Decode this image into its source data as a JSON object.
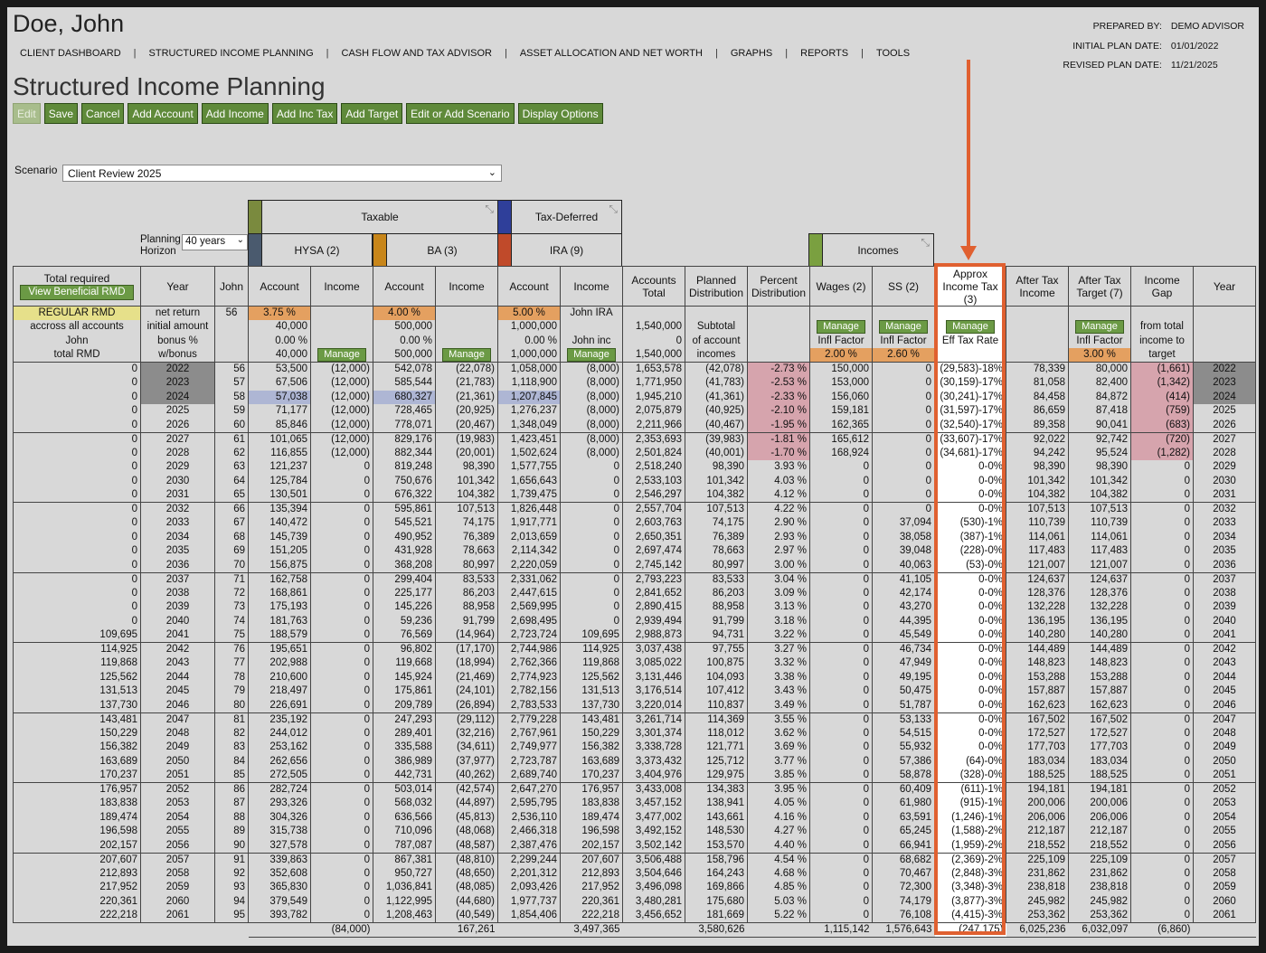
{
  "client": {
    "name": "Doe, John"
  },
  "nav": [
    "CLIENT DASHBOARD",
    "STRUCTURED INCOME PLANNING",
    "CASH FLOW AND TAX ADVISOR",
    "ASSET ALLOCATION AND NET WORTH",
    "GRAPHS",
    "REPORTS",
    "TOOLS"
  ],
  "meta": {
    "prepared_by_label": "PREPARED BY:",
    "prepared_by": "DEMO ADVISOR",
    "initial_label": "INITIAL PLAN DATE:",
    "initial": "01/01/2022",
    "revised_label": "REVISED PLAN DATE:",
    "revised": "11/21/2025"
  },
  "page_title": "Structured Income Planning",
  "toolbar": [
    "Edit",
    "Save",
    "Cancel",
    "Add Account",
    "Add Income",
    "Add Inc Tax",
    "Add Target",
    "Edit or Add Scenario",
    "Display Options"
  ],
  "scenario": {
    "label": "Scenario",
    "value": "Client Review 2025"
  },
  "planning_horizon": {
    "label": "Planning Horizon",
    "value": "40 years"
  },
  "groups": {
    "taxable": "Taxable",
    "taxdef": "Tax-Deferred",
    "incomes": "Incomes"
  },
  "accounts": {
    "hysa": "HYSA (2)",
    "ba": "BA (3)",
    "ira": "IRA (9)"
  },
  "colors": {
    "taxable": "#7a8a3e",
    "hysa": "#4a5a6e",
    "ba": "#c8861a",
    "taxdef": "#2f3f9a",
    "ira": "#c04a2a",
    "incomes": "#7aa040",
    "orange": "#e4a060",
    "highlight": "#e06030"
  },
  "headers": [
    "Total required",
    "Year",
    "John",
    "Account",
    "Income",
    "Account",
    "Income",
    "Account",
    "Income",
    "Accounts Total",
    "Planned Distribution",
    "Percent Distribution",
    "Wages (2)",
    "SS (2)",
    "Approx Income Tax (3)",
    "After Tax Income",
    "After Tax Target (7)",
    "Income Gap",
    "Year"
  ],
  "view_rmd": "View Beneficial RMD",
  "sub": {
    "regular_rmd": "REGULAR RMD",
    "across": "accross all accounts",
    "john": "John",
    "total_rmd": "total RMD",
    "net_return": "net return",
    "initial_amount": "initial amount",
    "bonus": "bonus %",
    "wbonus": "w/bonus",
    "age": "56",
    "hysa_rate": "3.75 %",
    "hysa_init": "40,000",
    "hysa_bonus": "0.00 %",
    "hysa_w": "40,000",
    "ba_rate": "4.00 %",
    "ba_init": "500,000",
    "ba_bonus": "0.00 %",
    "ba_w": "500,000",
    "ira_rate": "5.00 %",
    "ira_init": "1,000,000",
    "ira_bonus": "0.00 %",
    "ira_w": "1,000,000",
    "ira_name": "John IRA",
    "ira_inc": "John inc",
    "acct_total": "1,540,000",
    "acct_zero": "0",
    "acct_w": "1,540,000",
    "subtotal1": "Subtotal",
    "subtotal2": "of account",
    "subtotal3": "incomes",
    "manage": "Manage",
    "infl": "Infl Factor",
    "eff": "Eff Tax Rate",
    "wages_infl": "2.00 %",
    "ss_infl": "2.60 %",
    "target_infl": "3.00 %",
    "gap1": "from total",
    "gap2": "income to",
    "gap3": "target"
  },
  "rows": [
    [
      "0",
      "2022",
      "56",
      "53,500",
      "(12,000)",
      "542,078",
      "(22,078)",
      "1,058,000",
      "(8,000)",
      "1,653,578",
      "(42,078)",
      "-2.73 %",
      "150,000",
      "0",
      "(29,583)-18%",
      "78,339",
      "80,000",
      "(1,661)"
    ],
    [
      "0",
      "2023",
      "57",
      "67,506",
      "(12,000)",
      "585,544",
      "(21,783)",
      "1,118,900",
      "(8,000)",
      "1,771,950",
      "(41,783)",
      "-2.53 %",
      "153,000",
      "0",
      "(30,159)-17%",
      "81,058",
      "82,400",
      "(1,342)"
    ],
    [
      "0",
      "2024",
      "58",
      "57,038",
      "(12,000)",
      "680,327",
      "(21,361)",
      "1,207,845",
      "(8,000)",
      "1,945,210",
      "(41,361)",
      "-2.33 %",
      "156,060",
      "0",
      "(30,241)-17%",
      "84,458",
      "84,872",
      "(414)"
    ],
    [
      "0",
      "2025",
      "59",
      "71,177",
      "(12,000)",
      "728,465",
      "(20,925)",
      "1,276,237",
      "(8,000)",
      "2,075,879",
      "(40,925)",
      "-2.10 %",
      "159,181",
      "0",
      "(31,597)-17%",
      "86,659",
      "87,418",
      "(759)"
    ],
    [
      "0",
      "2026",
      "60",
      "85,846",
      "(12,000)",
      "778,071",
      "(20,467)",
      "1,348,049",
      "(8,000)",
      "2,211,966",
      "(40,467)",
      "-1.95 %",
      "162,365",
      "0",
      "(32,540)-17%",
      "89,358",
      "90,041",
      "(683)"
    ],
    [
      "0",
      "2027",
      "61",
      "101,065",
      "(12,000)",
      "829,176",
      "(19,983)",
      "1,423,451",
      "(8,000)",
      "2,353,693",
      "(39,983)",
      "-1.81 %",
      "165,612",
      "0",
      "(33,607)-17%",
      "92,022",
      "92,742",
      "(720)"
    ],
    [
      "0",
      "2028",
      "62",
      "116,855",
      "(12,000)",
      "882,344",
      "(20,001)",
      "1,502,624",
      "(8,000)",
      "2,501,824",
      "(40,001)",
      "-1.70 %",
      "168,924",
      "0",
      "(34,681)-17%",
      "94,242",
      "95,524",
      "(1,282)"
    ],
    [
      "0",
      "2029",
      "63",
      "121,237",
      "0",
      "819,248",
      "98,390",
      "1,577,755",
      "0",
      "2,518,240",
      "98,390",
      "3.93 %",
      "0",
      "0",
      "0-0%",
      "98,390",
      "98,390",
      "0"
    ],
    [
      "0",
      "2030",
      "64",
      "125,784",
      "0",
      "750,676",
      "101,342",
      "1,656,643",
      "0",
      "2,533,103",
      "101,342",
      "4.03 %",
      "0",
      "0",
      "0-0%",
      "101,342",
      "101,342",
      "0"
    ],
    [
      "0",
      "2031",
      "65",
      "130,501",
      "0",
      "676,322",
      "104,382",
      "1,739,475",
      "0",
      "2,546,297",
      "104,382",
      "4.12 %",
      "0",
      "0",
      "0-0%",
      "104,382",
      "104,382",
      "0"
    ],
    [
      "0",
      "2032",
      "66",
      "135,394",
      "0",
      "595,861",
      "107,513",
      "1,826,448",
      "0",
      "2,557,704",
      "107,513",
      "4.22 %",
      "0",
      "0",
      "0-0%",
      "107,513",
      "107,513",
      "0"
    ],
    [
      "0",
      "2033",
      "67",
      "140,472",
      "0",
      "545,521",
      "74,175",
      "1,917,771",
      "0",
      "2,603,763",
      "74,175",
      "2.90 %",
      "0",
      "37,094",
      "(530)-1%",
      "110,739",
      "110,739",
      "0"
    ],
    [
      "0",
      "2034",
      "68",
      "145,739",
      "0",
      "490,952",
      "76,389",
      "2,013,659",
      "0",
      "2,650,351",
      "76,389",
      "2.93 %",
      "0",
      "38,058",
      "(387)-1%",
      "114,061",
      "114,061",
      "0"
    ],
    [
      "0",
      "2035",
      "69",
      "151,205",
      "0",
      "431,928",
      "78,663",
      "2,114,342",
      "0",
      "2,697,474",
      "78,663",
      "2.97 %",
      "0",
      "39,048",
      "(228)-0%",
      "117,483",
      "117,483",
      "0"
    ],
    [
      "0",
      "2036",
      "70",
      "156,875",
      "0",
      "368,208",
      "80,997",
      "2,220,059",
      "0",
      "2,745,142",
      "80,997",
      "3.00 %",
      "0",
      "40,063",
      "(53)-0%",
      "121,007",
      "121,007",
      "0"
    ],
    [
      "0",
      "2037",
      "71",
      "162,758",
      "0",
      "299,404",
      "83,533",
      "2,331,062",
      "0",
      "2,793,223",
      "83,533",
      "3.04 %",
      "0",
      "41,105",
      "0-0%",
      "124,637",
      "124,637",
      "0"
    ],
    [
      "0",
      "2038",
      "72",
      "168,861",
      "0",
      "225,177",
      "86,203",
      "2,447,615",
      "0",
      "2,841,652",
      "86,203",
      "3.09 %",
      "0",
      "42,174",
      "0-0%",
      "128,376",
      "128,376",
      "0"
    ],
    [
      "0",
      "2039",
      "73",
      "175,193",
      "0",
      "145,226",
      "88,958",
      "2,569,995",
      "0",
      "2,890,415",
      "88,958",
      "3.13 %",
      "0",
      "43,270",
      "0-0%",
      "132,228",
      "132,228",
      "0"
    ],
    [
      "0",
      "2040",
      "74",
      "181,763",
      "0",
      "59,236",
      "91,799",
      "2,698,495",
      "0",
      "2,939,494",
      "91,799",
      "3.18 %",
      "0",
      "44,395",
      "0-0%",
      "136,195",
      "136,195",
      "0"
    ],
    [
      "109,695",
      "2041",
      "75",
      "188,579",
      "0",
      "76,569",
      "(14,964)",
      "2,723,724",
      "109,695",
      "2,988,873",
      "94,731",
      "3.22 %",
      "0",
      "45,549",
      "0-0%",
      "140,280",
      "140,280",
      "0"
    ],
    [
      "114,925",
      "2042",
      "76",
      "195,651",
      "0",
      "96,802",
      "(17,170)",
      "2,744,986",
      "114,925",
      "3,037,438",
      "97,755",
      "3.27 %",
      "0",
      "46,734",
      "0-0%",
      "144,489",
      "144,489",
      "0"
    ],
    [
      "119,868",
      "2043",
      "77",
      "202,988",
      "0",
      "119,668",
      "(18,994)",
      "2,762,366",
      "119,868",
      "3,085,022",
      "100,875",
      "3.32 %",
      "0",
      "47,949",
      "0-0%",
      "148,823",
      "148,823",
      "0"
    ],
    [
      "125,562",
      "2044",
      "78",
      "210,600",
      "0",
      "145,924",
      "(21,469)",
      "2,774,923",
      "125,562",
      "3,131,446",
      "104,093",
      "3.38 %",
      "0",
      "49,195",
      "0-0%",
      "153,288",
      "153,288",
      "0"
    ],
    [
      "131,513",
      "2045",
      "79",
      "218,497",
      "0",
      "175,861",
      "(24,101)",
      "2,782,156",
      "131,513",
      "3,176,514",
      "107,412",
      "3.43 %",
      "0",
      "50,475",
      "0-0%",
      "157,887",
      "157,887",
      "0"
    ],
    [
      "137,730",
      "2046",
      "80",
      "226,691",
      "0",
      "209,789",
      "(26,894)",
      "2,783,533",
      "137,730",
      "3,220,014",
      "110,837",
      "3.49 %",
      "0",
      "51,787",
      "0-0%",
      "162,623",
      "162,623",
      "0"
    ],
    [
      "143,481",
      "2047",
      "81",
      "235,192",
      "0",
      "247,293",
      "(29,112)",
      "2,779,228",
      "143,481",
      "3,261,714",
      "114,369",
      "3.55 %",
      "0",
      "53,133",
      "0-0%",
      "167,502",
      "167,502",
      "0"
    ],
    [
      "150,229",
      "2048",
      "82",
      "244,012",
      "0",
      "289,401",
      "(32,216)",
      "2,767,961",
      "150,229",
      "3,301,374",
      "118,012",
      "3.62 %",
      "0",
      "54,515",
      "0-0%",
      "172,527",
      "172,527",
      "0"
    ],
    [
      "156,382",
      "2049",
      "83",
      "253,162",
      "0",
      "335,588",
      "(34,611)",
      "2,749,977",
      "156,382",
      "3,338,728",
      "121,771",
      "3.69 %",
      "0",
      "55,932",
      "0-0%",
      "177,703",
      "177,703",
      "0"
    ],
    [
      "163,689",
      "2050",
      "84",
      "262,656",
      "0",
      "386,989",
      "(37,977)",
      "2,723,787",
      "163,689",
      "3,373,432",
      "125,712",
      "3.77 %",
      "0",
      "57,386",
      "(64)-0%",
      "183,034",
      "183,034",
      "0"
    ],
    [
      "170,237",
      "2051",
      "85",
      "272,505",
      "0",
      "442,731",
      "(40,262)",
      "2,689,740",
      "170,237",
      "3,404,976",
      "129,975",
      "3.85 %",
      "0",
      "58,878",
      "(328)-0%",
      "188,525",
      "188,525",
      "0"
    ],
    [
      "176,957",
      "2052",
      "86",
      "282,724",
      "0",
      "503,014",
      "(42,574)",
      "2,647,270",
      "176,957",
      "3,433,008",
      "134,383",
      "3.95 %",
      "0",
      "60,409",
      "(611)-1%",
      "194,181",
      "194,181",
      "0"
    ],
    [
      "183,838",
      "2053",
      "87",
      "293,326",
      "0",
      "568,032",
      "(44,897)",
      "2,595,795",
      "183,838",
      "3,457,152",
      "138,941",
      "4.05 %",
      "0",
      "61,980",
      "(915)-1%",
      "200,006",
      "200,006",
      "0"
    ],
    [
      "189,474",
      "2054",
      "88",
      "304,326",
      "0",
      "636,566",
      "(45,813)",
      "2,536,110",
      "189,474",
      "3,477,002",
      "143,661",
      "4.16 %",
      "0",
      "63,591",
      "(1,246)-1%",
      "206,006",
      "206,006",
      "0"
    ],
    [
      "196,598",
      "2055",
      "89",
      "315,738",
      "0",
      "710,096",
      "(48,068)",
      "2,466,318",
      "196,598",
      "3,492,152",
      "148,530",
      "4.27 %",
      "0",
      "65,245",
      "(1,588)-2%",
      "212,187",
      "212,187",
      "0"
    ],
    [
      "202,157",
      "2056",
      "90",
      "327,578",
      "0",
      "787,087",
      "(48,587)",
      "2,387,476",
      "202,157",
      "3,502,142",
      "153,570",
      "4.40 %",
      "0",
      "66,941",
      "(1,959)-2%",
      "218,552",
      "218,552",
      "0"
    ],
    [
      "207,607",
      "2057",
      "91",
      "339,863",
      "0",
      "867,381",
      "(48,810)",
      "2,299,244",
      "207,607",
      "3,506,488",
      "158,796",
      "4.54 %",
      "0",
      "68,682",
      "(2,369)-2%",
      "225,109",
      "225,109",
      "0"
    ],
    [
      "212,893",
      "2058",
      "92",
      "352,608",
      "0",
      "950,727",
      "(48,650)",
      "2,201,312",
      "212,893",
      "3,504,646",
      "164,243",
      "4.68 %",
      "0",
      "70,467",
      "(2,848)-3%",
      "231,862",
      "231,862",
      "0"
    ],
    [
      "217,952",
      "2059",
      "93",
      "365,830",
      "0",
      "1,036,841",
      "(48,085)",
      "2,093,426",
      "217,952",
      "3,496,098",
      "169,866",
      "4.85 %",
      "0",
      "72,300",
      "(3,348)-3%",
      "238,818",
      "238,818",
      "0"
    ],
    [
      "220,361",
      "2060",
      "94",
      "379,549",
      "0",
      "1,122,995",
      "(44,680)",
      "1,977,737",
      "220,361",
      "3,480,281",
      "175,680",
      "5.03 %",
      "0",
      "74,179",
      "(3,877)-3%",
      "245,982",
      "245,982",
      "0"
    ],
    [
      "222,218",
      "2061",
      "95",
      "393,782",
      "0",
      "1,208,463",
      "(40,549)",
      "1,854,406",
      "222,218",
      "3,456,652",
      "181,669",
      "5.22 %",
      "0",
      "76,108",
      "(4,415)-3%",
      "253,362",
      "253,362",
      "0"
    ]
  ],
  "totals": {
    "hysa_inc": "(84,000)",
    "ba_inc": "167,261",
    "ira_inc": "3,497,365",
    "planned": "3,580,626",
    "wages": "1,115,142",
    "ss": "1,576,643",
    "tax": "(247,175)",
    "ati": "6,025,236",
    "att": "6,032,097",
    "gap": "(6,860)"
  }
}
